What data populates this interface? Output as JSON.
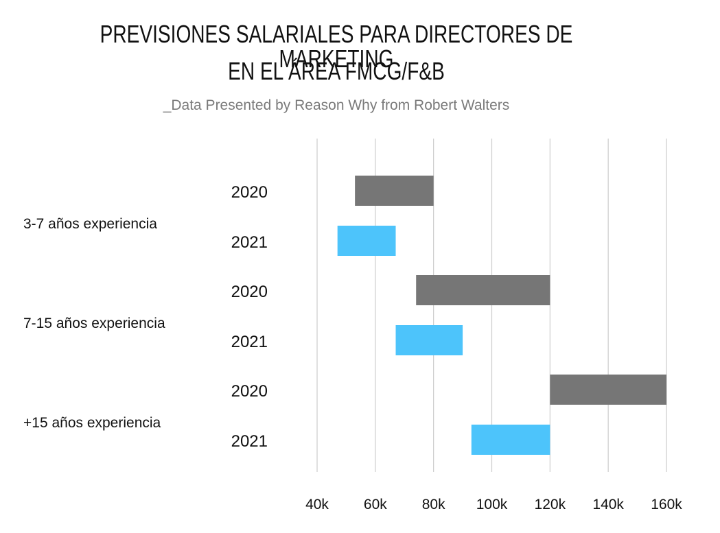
{
  "header": {
    "title_line1": "PREVISIONES SALARIALES PARA DIRECTORES DE MARKETING",
    "title_line2": "EN EL ÁREA FMCG/F&B",
    "subtitle": "_Data Presented by Reason Why from Robert Walters"
  },
  "chart_data": {
    "type": "bar",
    "orientation": "horizontal-range",
    "title": "PREVISIONES SALARIALES PARA DIRECTORES DE MARKETING EN EL ÁREA FMCG/F&B",
    "subtitle": "_Data Presented by Reason Why from Robert Walters",
    "xlim": [
      40,
      160
    ],
    "x_ticks": [
      {
        "value": 40,
        "label": "40k"
      },
      {
        "value": 60,
        "label": "60k"
      },
      {
        "value": 80,
        "label": "80k"
      },
      {
        "value": 100,
        "label": "100k"
      },
      {
        "value": 120,
        "label": "120k"
      },
      {
        "value": 140,
        "label": "140k"
      },
      {
        "value": 160,
        "label": "160k"
      }
    ],
    "grid": "vertical",
    "colors": {
      "2020": "#767676",
      "2021": "#4dc4fb"
    },
    "groups": [
      {
        "label": "3-7 años experiencia",
        "bars": [
          {
            "year": "2020",
            "min": 53,
            "max": 80
          },
          {
            "year": "2021",
            "min": 47,
            "max": 67
          }
        ]
      },
      {
        "label": "7-15 años experiencia",
        "bars": [
          {
            "year": "2020",
            "min": 74,
            "max": 120
          },
          {
            "year": "2021",
            "min": 67,
            "max": 90
          }
        ]
      },
      {
        "label": "+15 años experiencia",
        "bars": [
          {
            "year": "2020",
            "min": 120,
            "max": 160
          },
          {
            "year": "2021",
            "min": 93,
            "max": 120
          }
        ]
      }
    ]
  }
}
